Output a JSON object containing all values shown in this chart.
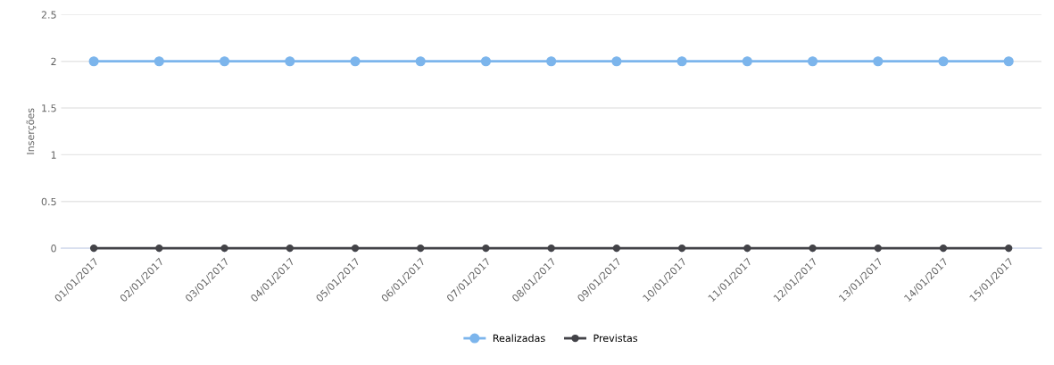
{
  "chart_data": {
    "type": "line",
    "ylabel": "Inserções",
    "categories": [
      "01/01/2017",
      "02/01/2017",
      "03/01/2017",
      "04/01/2017",
      "05/01/2017",
      "06/01/2017",
      "07/01/2017",
      "08/01/2017",
      "09/01/2017",
      "10/01/2017",
      "11/01/2017",
      "12/01/2017",
      "13/01/2017",
      "14/01/2017",
      "15/01/2017"
    ],
    "series": [
      {
        "name": "Realizadas",
        "color": "#7cb5ec",
        "values": [
          2,
          2,
          2,
          2,
          2,
          2,
          2,
          2,
          2,
          2,
          2,
          2,
          2,
          2,
          2
        ]
      },
      {
        "name": "Previstas",
        "color": "#434348",
        "values": [
          0,
          0,
          0,
          0,
          0,
          0,
          0,
          0,
          0,
          0,
          0,
          0,
          0,
          0,
          0
        ]
      }
    ],
    "ylim": [
      0,
      2.5
    ],
    "yticks": [
      0,
      0.5,
      1,
      1.5,
      2,
      2.5
    ],
    "grid": "y",
    "legend": "bottom",
    "marker": "circle",
    "line_style": "solid"
  }
}
